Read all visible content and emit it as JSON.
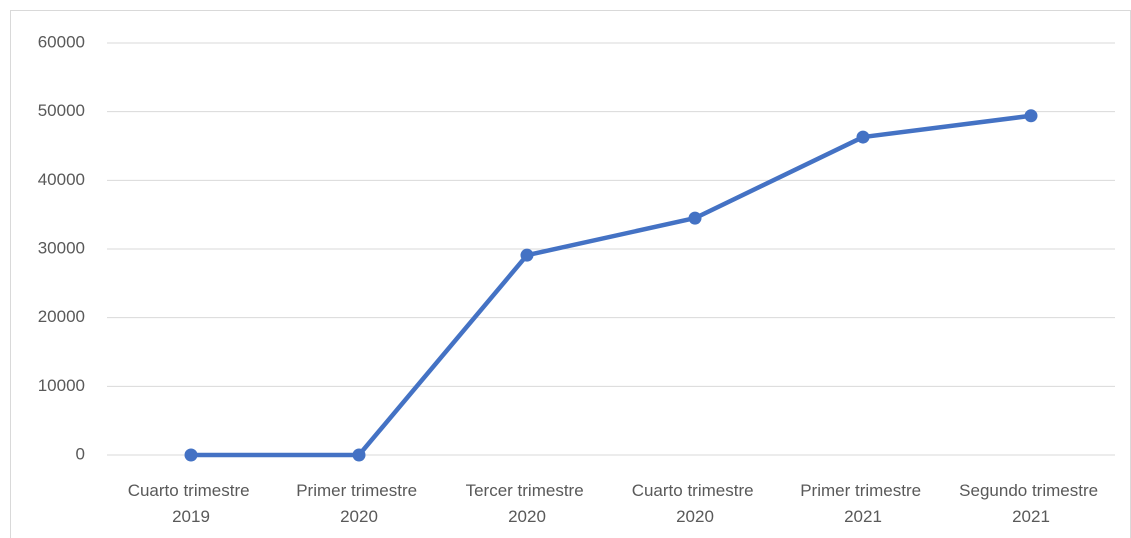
{
  "chart_data": {
    "type": "line",
    "categories": [
      "Cuarto trimestre 2019",
      "Primer trimestre 2020",
      "Tercer trimestre 2020",
      "Cuarto trimestre 2020",
      "Primer trimestre 2021",
      "Segundo trimestre 2021"
    ],
    "values": [
      0,
      0,
      29100,
      34500,
      46300,
      49400
    ],
    "color": "#4472c4",
    "ylim": [
      0,
      60000
    ],
    "yticks": [
      0,
      10000,
      20000,
      30000,
      40000,
      50000,
      60000
    ],
    "grid": true
  }
}
